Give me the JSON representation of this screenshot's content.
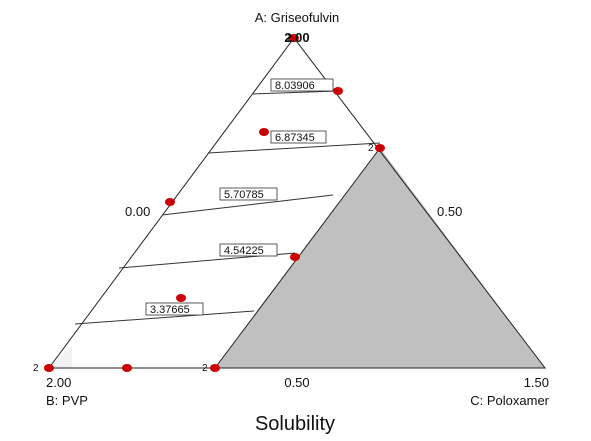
{
  "chart_data": {
    "type": "ternary-contour",
    "title": "Solubility",
    "vertices": {
      "top": {
        "label": "A: Griseofulvin",
        "value": "2.00"
      },
      "left": {
        "label": "B: PVP",
        "value": "2.00"
      },
      "right": {
        "label": "C: Poloxamer",
        "value": "1.50"
      }
    },
    "edge_ticks": {
      "left": "0.00",
      "right": "0.50",
      "bottom": "0.50"
    },
    "contours": [
      {
        "level": "8.03906"
      },
      {
        "level": "6.87345"
      },
      {
        "level": "5.70785"
      },
      {
        "level": "4.54225"
      },
      {
        "level": "3.37665"
      }
    ],
    "design_point_counts": [
      "2",
      "2",
      "2",
      "2"
    ],
    "infeasible_region_color": "#c0c0c0",
    "point_color": "#cc0000"
  }
}
